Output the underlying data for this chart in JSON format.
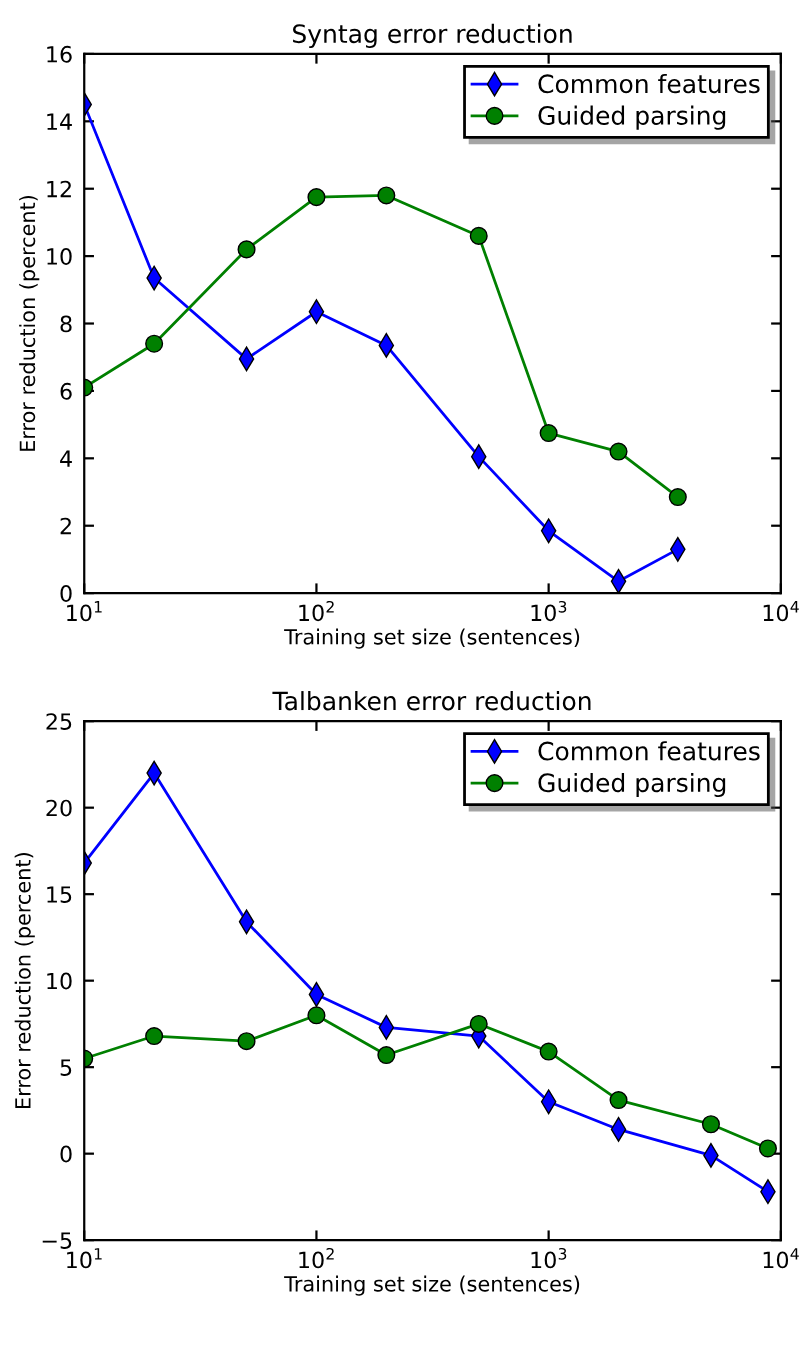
{
  "chart_data": [
    {
      "type": "line",
      "title": "Syntag error reduction",
      "xlabel": "Training set size (sentences)",
      "ylabel": "Error reduction (percent)",
      "log": "x",
      "xlim": [
        10,
        10000
      ],
      "xticks": [
        {
          "value": 10,
          "label": "10$^{1}$"
        },
        {
          "value": 100,
          "label": "10$^{2}$"
        },
        {
          "value": 1000,
          "label": "10$^{3}$"
        },
        {
          "value": 10000,
          "label": "10$^{4}$"
        }
      ],
      "ylim": [
        0,
        16
      ],
      "yticks": [
        0,
        2,
        4,
        6,
        8,
        10,
        12,
        14,
        16
      ],
      "grid": false,
      "legend": "top right",
      "series": [
        {
          "name": "Common features",
          "color": "#0000ff",
          "marker": "diamond",
          "x": [
            10,
            20,
            50,
            100,
            200,
            500,
            1000,
            2000,
            3600
          ],
          "values": [
            14.5,
            9.35,
            6.95,
            8.35,
            7.35,
            4.05,
            1.85,
            0.35,
            1.3
          ]
        },
        {
          "name": "Guided parsing",
          "color": "#008000",
          "marker": "circle",
          "x": [
            10,
            20,
            50,
            100,
            200,
            500,
            1000,
            2000,
            3600
          ],
          "values": [
            6.1,
            7.4,
            10.2,
            11.75,
            11.8,
            10.6,
            4.75,
            4.2,
            2.85
          ]
        }
      ]
    },
    {
      "type": "line",
      "title": "Talbanken error reduction",
      "xlabel": "Training set size (sentences)",
      "ylabel": "Error reduction (percent)",
      "log": "x",
      "xlim": [
        10,
        10000
      ],
      "xticks": [
        {
          "value": 10,
          "label": "10$^{1}$"
        },
        {
          "value": 100,
          "label": "10$^{2}$"
        },
        {
          "value": 1000,
          "label": "10$^{3}$"
        },
        {
          "value": 10000,
          "label": "10$^{4}$"
        }
      ],
      "ylim": [
        -5,
        25
      ],
      "yticks": [
        {
          "value": -5,
          "label": "−5"
        },
        0,
        5,
        10,
        15,
        20,
        25
      ],
      "grid": false,
      "legend": "top right",
      "series": [
        {
          "name": "Common features",
          "color": "#0000ff",
          "marker": "diamond",
          "x": [
            10,
            20,
            50,
            100,
            200,
            500,
            1000,
            2000,
            5000,
            8800
          ],
          "values": [
            16.8,
            22.0,
            13.4,
            9.2,
            7.3,
            6.8,
            3.0,
            1.4,
            -0.1,
            -2.2
          ]
        },
        {
          "name": "Guided parsing",
          "color": "#008000",
          "marker": "circle",
          "x": [
            10,
            20,
            50,
            100,
            200,
            500,
            1000,
            2000,
            5000,
            8800
          ],
          "values": [
            5.5,
            6.8,
            6.5,
            8.0,
            5.7,
            7.5,
            5.9,
            3.1,
            1.7,
            0.3
          ]
        }
      ]
    }
  ]
}
